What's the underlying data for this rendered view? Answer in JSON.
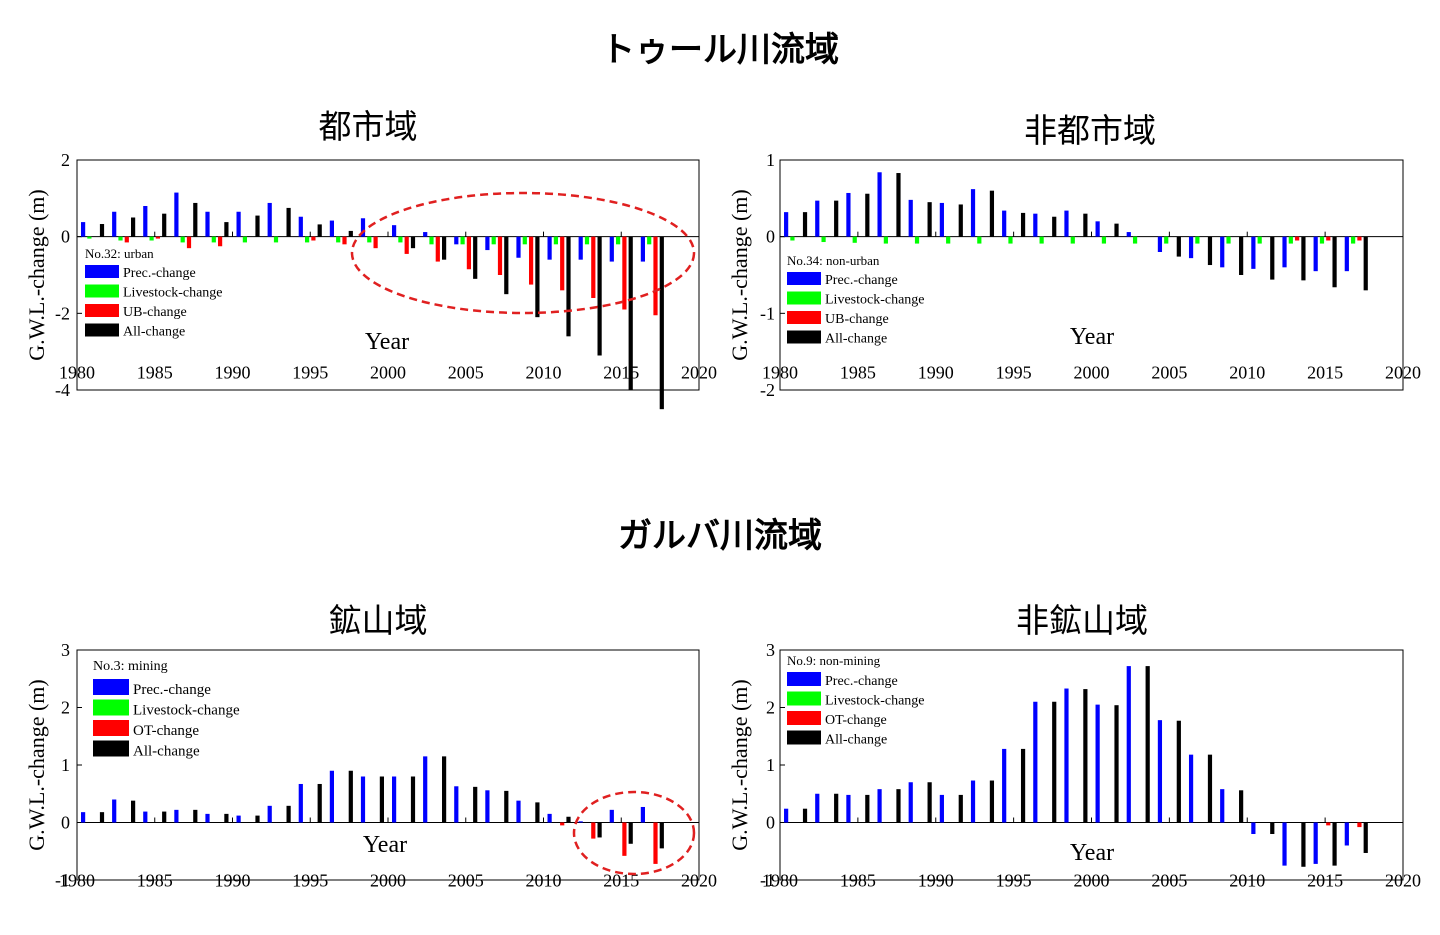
{
  "titles": {
    "top_section": "トゥール川流域",
    "bottom_section": "ガルバ川流域"
  },
  "chart_data": [
    {
      "type": "bar",
      "title": "都市域",
      "xlabel": "Year",
      "ylabel": "G.W.L.-change (m)",
      "xlim": [
        1980,
        2020
      ],
      "ylim": [
        -4,
        2
      ],
      "xticks": [
        1980,
        1985,
        1990,
        1995,
        2000,
        2005,
        2010,
        2015,
        2020
      ],
      "yticks": [
        -4,
        -2,
        0,
        2
      ],
      "legend_title": "No.32: urban",
      "legend_position": "middle-left",
      "x": [
        1981,
        1983,
        1985,
        1987,
        1989,
        1991,
        1993,
        1995,
        1997,
        1999,
        2001,
        2003,
        2005,
        2007,
        2009,
        2011,
        2013,
        2015,
        2017
      ],
      "series": [
        {
          "name": "Prec.-change",
          "color": "#0000ff",
          "values": [
            0.38,
            0.65,
            0.8,
            1.15,
            0.65,
            0.65,
            0.88,
            0.52,
            0.42,
            0.48,
            0.3,
            0.12,
            -0.2,
            -0.35,
            -0.55,
            -0.6,
            -0.6,
            -0.65,
            -0.65
          ]
        },
        {
          "name": "Livestock-change",
          "color": "#00ff00",
          "values": [
            -0.05,
            -0.1,
            -0.1,
            -0.15,
            -0.15,
            -0.15,
            -0.15,
            -0.15,
            -0.15,
            -0.15,
            -0.15,
            -0.2,
            -0.2,
            -0.2,
            -0.2,
            -0.2,
            -0.2,
            -0.2,
            -0.2
          ]
        },
        {
          "name": "UB-change",
          "color": "#ff0000",
          "values": [
            0.0,
            -0.15,
            -0.05,
            -0.3,
            -0.25,
            0.0,
            0.0,
            -0.1,
            -0.2,
            -0.3,
            -0.45,
            -0.65,
            -0.85,
            -1.0,
            -1.25,
            -1.4,
            -1.6,
            -1.9,
            -2.05
          ]
        },
        {
          "name": "All-change",
          "color": "#000000",
          "values": [
            0.33,
            0.5,
            0.6,
            0.88,
            0.38,
            0.55,
            0.75,
            0.32,
            0.15,
            0.0,
            -0.3,
            -0.6,
            -1.1,
            -1.5,
            -2.1,
            -2.6,
            -3.1,
            -4.0,
            -4.5
          ]
        }
      ]
    },
    {
      "type": "bar",
      "title": "非都市域",
      "xlabel": "Year",
      "ylabel": "G.W.L.-change (m)",
      "xlim": [
        1980,
        2020
      ],
      "ylim": [
        -2,
        1
      ],
      "xticks": [
        1980,
        1985,
        1990,
        1995,
        2000,
        2005,
        2010,
        2015,
        2020
      ],
      "yticks": [
        -2,
        -1,
        0,
        1
      ],
      "legend_title": "No.34: non-urban",
      "legend_position": "bottom-left",
      "x": [
        1981,
        1983,
        1985,
        1987,
        1989,
        1991,
        1993,
        1995,
        1997,
        1999,
        2001,
        2003,
        2005,
        2007,
        2009,
        2011,
        2013,
        2015,
        2017
      ],
      "series": [
        {
          "name": "Prec.-change",
          "color": "#0000ff",
          "values": [
            0.32,
            0.47,
            0.57,
            0.84,
            0.48,
            0.44,
            0.62,
            0.34,
            0.3,
            0.34,
            0.2,
            0.06,
            -0.2,
            -0.28,
            -0.4,
            -0.42,
            -0.4,
            -0.45,
            -0.45
          ]
        },
        {
          "name": "Livestock-change",
          "color": "#00ff00",
          "values": [
            -0.05,
            -0.07,
            -0.08,
            -0.09,
            -0.09,
            -0.09,
            -0.09,
            -0.09,
            -0.09,
            -0.09,
            -0.09,
            -0.09,
            -0.09,
            -0.09,
            -0.09,
            -0.09,
            -0.09,
            -0.09,
            -0.09
          ]
        },
        {
          "name": "UB-change",
          "color": "#ff0000",
          "values": [
            0.0,
            0.0,
            0.0,
            0.0,
            0.0,
            0.0,
            0.0,
            0.0,
            0.0,
            0.0,
            0.0,
            0.0,
            0.0,
            0.0,
            0.0,
            0.0,
            -0.05,
            -0.05,
            -0.05
          ]
        },
        {
          "name": "All-change",
          "color": "#000000",
          "values": [
            0.32,
            0.47,
            0.56,
            0.83,
            0.45,
            0.42,
            0.6,
            0.31,
            0.26,
            0.3,
            0.17,
            0.0,
            -0.26,
            -0.37,
            -0.5,
            -0.56,
            -0.57,
            -0.66,
            -0.7
          ]
        }
      ]
    },
    {
      "type": "bar",
      "title": "鉱山域",
      "xlabel": "Year",
      "ylabel": "G.W.L.-change (m)",
      "xlim": [
        1980,
        2020
      ],
      "ylim": [
        -1,
        3
      ],
      "xticks": [
        1980,
        1985,
        1990,
        1995,
        2000,
        2005,
        2010,
        2015,
        2020
      ],
      "yticks": [
        -1,
        0,
        1,
        2,
        3
      ],
      "legend_title": "No.3: mining",
      "legend_position": "top-left",
      "x": [
        1981,
        1983,
        1985,
        1987,
        1989,
        1991,
        1993,
        1995,
        1997,
        1999,
        2001,
        2003,
        2005,
        2007,
        2009,
        2011,
        2013,
        2015,
        2017
      ],
      "series": [
        {
          "name": "Prec.-change",
          "color": "#0000ff",
          "values": [
            0.18,
            0.4,
            0.19,
            0.22,
            0.15,
            0.12,
            0.29,
            0.67,
            0.9,
            0.8,
            0.8,
            1.15,
            0.63,
            0.56,
            0.38,
            0.15,
            0.02,
            0.22,
            0.27
          ]
        },
        {
          "name": "Livestock-change",
          "color": "#00ff00",
          "values": [
            0.0,
            0.0,
            0.0,
            0.0,
            0.0,
            0.0,
            0.0,
            0.0,
            0.0,
            0.0,
            0.0,
            0.0,
            0.0,
            0.0,
            0.0,
            0.0,
            0.0,
            0.0,
            0.0
          ]
        },
        {
          "name": "OT-change",
          "color": "#ff0000",
          "values": [
            0.0,
            0.0,
            0.0,
            0.0,
            0.0,
            0.0,
            0.0,
            0.0,
            0.0,
            0.0,
            0.0,
            0.0,
            0.0,
            0.0,
            0.0,
            -0.05,
            -0.28,
            -0.58,
            -0.72
          ]
        },
        {
          "name": "All-change",
          "color": "#000000",
          "values": [
            0.18,
            0.38,
            0.19,
            0.22,
            0.15,
            0.12,
            0.29,
            0.67,
            0.9,
            0.8,
            0.8,
            1.15,
            0.62,
            0.55,
            0.35,
            0.1,
            -0.26,
            -0.37,
            -0.45
          ]
        }
      ]
    },
    {
      "type": "bar",
      "title": "非鉱山域",
      "xlabel": "Year",
      "ylabel": "G.W.L.-change (m)",
      "xlim": [
        1980,
        2020
      ],
      "ylim": [
        -1,
        3
      ],
      "xticks": [
        1980,
        1985,
        1990,
        1995,
        2000,
        2005,
        2010,
        2015,
        2020
      ],
      "yticks": [
        -1,
        0,
        1,
        2,
        3
      ],
      "legend_title": "No.9: non-mining",
      "legend_position": "top-left",
      "x": [
        1981,
        1983,
        1985,
        1987,
        1989,
        1991,
        1993,
        1995,
        1997,
        1999,
        2001,
        2003,
        2005,
        2007,
        2009,
        2011,
        2013,
        2015,
        2017
      ],
      "series": [
        {
          "name": "Prec.-change",
          "color": "#0000ff",
          "values": [
            0.24,
            0.5,
            0.48,
            0.58,
            0.7,
            0.48,
            0.73,
            1.28,
            2.1,
            2.33,
            2.05,
            2.72,
            1.78,
            1.18,
            0.58,
            -0.2,
            -0.75,
            -0.72,
            -0.4
          ]
        },
        {
          "name": "Livestock-change",
          "color": "#00ff00",
          "values": [
            0.0,
            0.0,
            0.0,
            0.0,
            0.0,
            0.0,
            0.0,
            0.0,
            0.0,
            0.0,
            0.0,
            0.0,
            0.0,
            0.0,
            0.0,
            0.0,
            0.0,
            0.0,
            0.0
          ]
        },
        {
          "name": "OT-change",
          "color": "#ff0000",
          "values": [
            0.0,
            0.0,
            0.0,
            0.0,
            0.0,
            0.0,
            0.0,
            0.0,
            0.0,
            0.0,
            0.0,
            0.0,
            0.0,
            0.0,
            0.0,
            0.0,
            0.0,
            -0.05,
            -0.08
          ]
        },
        {
          "name": "All-change",
          "color": "#000000",
          "values": [
            0.24,
            0.5,
            0.48,
            0.58,
            0.7,
            0.48,
            0.73,
            1.28,
            2.1,
            2.32,
            2.04,
            2.72,
            1.77,
            1.18,
            0.56,
            -0.2,
            -0.77,
            -0.75,
            -0.53
          ]
        }
      ]
    }
  ]
}
